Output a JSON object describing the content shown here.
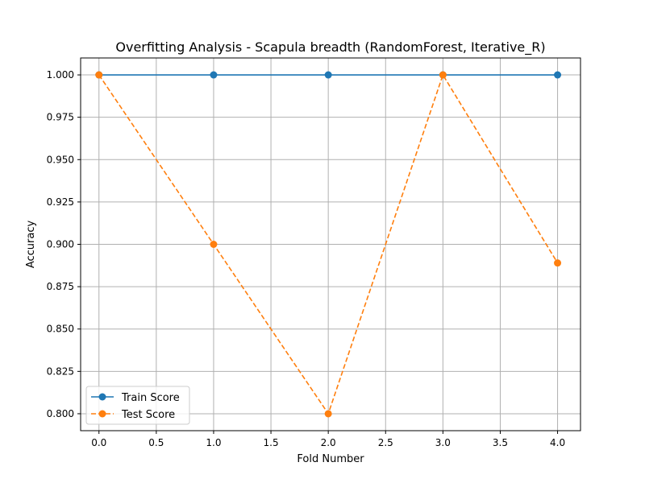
{
  "chart_data": {
    "type": "line",
    "title": "Overfitting Analysis - Scapula breadth (RandomForest, Iterative_R)",
    "xlabel": "Fold Number",
    "ylabel": "Accuracy",
    "xlim": [
      -0.16,
      4.2
    ],
    "ylim": [
      0.79,
      1.01
    ],
    "xticks": [
      0.0,
      0.5,
      1.0,
      1.5,
      2.0,
      2.5,
      3.0,
      3.5,
      4.0
    ],
    "xtick_labels": [
      "0.0",
      "0.5",
      "1.0",
      "1.5",
      "2.0",
      "2.5",
      "3.0",
      "3.5",
      "4.0"
    ],
    "yticks": [
      0.8,
      0.825,
      0.85,
      0.875,
      0.9,
      0.925,
      0.95,
      0.975,
      1.0
    ],
    "ytick_labels": [
      "0.800",
      "0.825",
      "0.850",
      "0.875",
      "0.900",
      "0.925",
      "0.950",
      "0.975",
      "1.000"
    ],
    "grid": true,
    "legend_position": "bottom-left",
    "x": [
      0,
      1,
      2,
      3,
      4
    ],
    "series": [
      {
        "name": "Train Score",
        "values": [
          1.0,
          1.0,
          1.0,
          1.0,
          1.0
        ],
        "color": "#1f77b4",
        "line_style": "solid",
        "marker": "circle"
      },
      {
        "name": "Test Score",
        "values": [
          1.0,
          0.9,
          0.8,
          1.0,
          0.889
        ],
        "color": "#ff7f0e",
        "line_style": "dashed",
        "marker": "circle"
      }
    ]
  }
}
